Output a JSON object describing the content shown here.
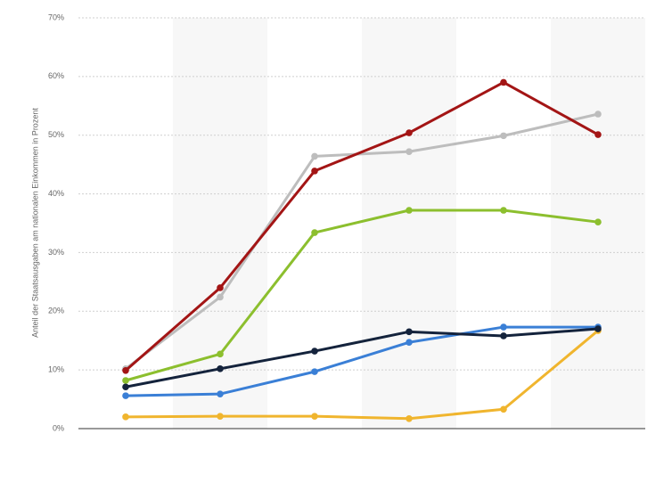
{
  "chart_data": {
    "type": "line",
    "y_label": "Anteil der Staatsausgaben am nationalen Einkommen in Prozent",
    "categories": [
      null,
      null,
      null,
      null,
      null,
      null
    ],
    "ylim": [
      0,
      70
    ],
    "yticks": [
      {
        "value": 0,
        "label": "0%"
      },
      {
        "value": 10,
        "label": "10%"
      },
      {
        "value": 20,
        "label": "20%"
      },
      {
        "value": 30,
        "label": "30%"
      },
      {
        "value": 40,
        "label": "40%"
      },
      {
        "value": 50,
        "label": "50%"
      },
      {
        "value": 60,
        "label": "60%"
      },
      {
        "value": 70,
        "label": "70%"
      }
    ],
    "grid": true,
    "series": [
      {
        "color": "#bdbdbd",
        "values": [
          10.2,
          22.4,
          46.4,
          47.2,
          49.9,
          53.6
        ]
      },
      {
        "color": "#8cbf2e",
        "values": [
          8.2,
          12.7,
          33.4,
          37.2,
          37.2,
          35.2
        ]
      },
      {
        "color": "#f0b52e",
        "values": [
          2.0,
          2.1,
          2.1,
          1.7,
          3.3,
          16.7
        ]
      },
      {
        "color": "#3a7fd6",
        "values": [
          5.6,
          5.9,
          9.7,
          14.7,
          17.3,
          17.3
        ]
      },
      {
        "color": "#14233c",
        "values": [
          7.1,
          10.2,
          13.2,
          16.5,
          15.8,
          17.0
        ]
      },
      {
        "color": "#a31515",
        "values": [
          9.9,
          24.0,
          43.9,
          50.4,
          59.0,
          50.1
        ]
      }
    ]
  }
}
